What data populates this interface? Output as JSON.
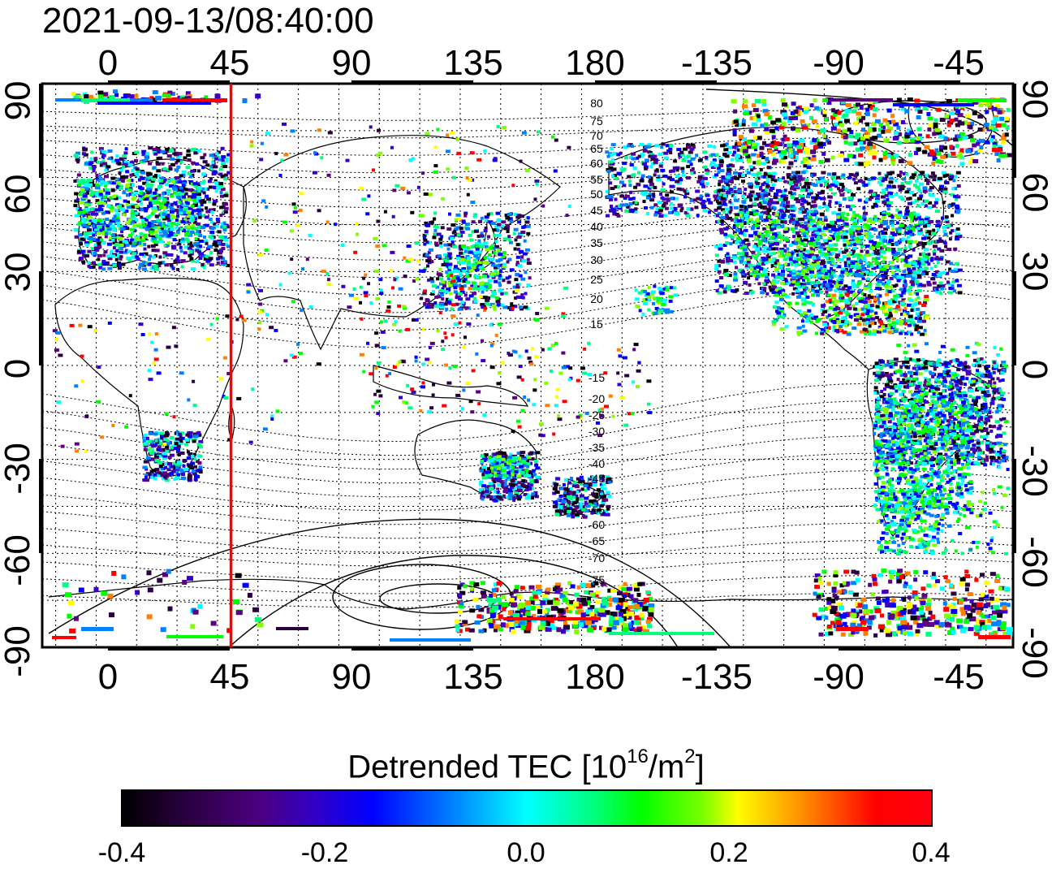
{
  "timestamp": "2021-09-13/08:40:00",
  "x_ticks": [
    "0",
    "45",
    "90",
    "135",
    "180",
    "-135",
    "-90",
    "-45"
  ],
  "y_ticks": [
    "90",
    "60",
    "30",
    "0",
    "-30",
    "-60",
    "-90"
  ],
  "contour_labels": [
    "80",
    "75",
    "70",
    "65",
    "60",
    "55",
    "50",
    "45",
    "40",
    "35",
    "30",
    "25",
    "20",
    "15",
    "-15",
    "-20",
    "-25",
    "-30",
    "-35",
    "-40",
    "-45",
    "-50",
    "-55",
    "-60",
    "-65",
    "-70",
    "-75"
  ],
  "colorbar": {
    "title_prefix": "Detrended TEC  [10",
    "title_sup1": "16",
    "title_mid": "/m",
    "title_sup2": "2",
    "title_suffix": "]",
    "ticks": [
      "-0.4",
      "-0.2",
      "0.0",
      "0.2",
      "0.4"
    ],
    "range": [
      -0.4,
      0.4
    ],
    "colors": [
      "#000000",
      "#2a0040",
      "#5a0080",
      "#3a00c8",
      "#0000ff",
      "#0080ff",
      "#00ffff",
      "#00ff80",
      "#00ff00",
      "#80ff00",
      "#ffff00",
      "#ff8000",
      "#ff0000"
    ]
  },
  "marker_line": {
    "longitude": 50,
    "color": "#ff0000"
  },
  "map": {
    "lon_range_label": "-20 to 340",
    "lat_range": [
      -90,
      90
    ],
    "frame_color": "#000000"
  }
}
